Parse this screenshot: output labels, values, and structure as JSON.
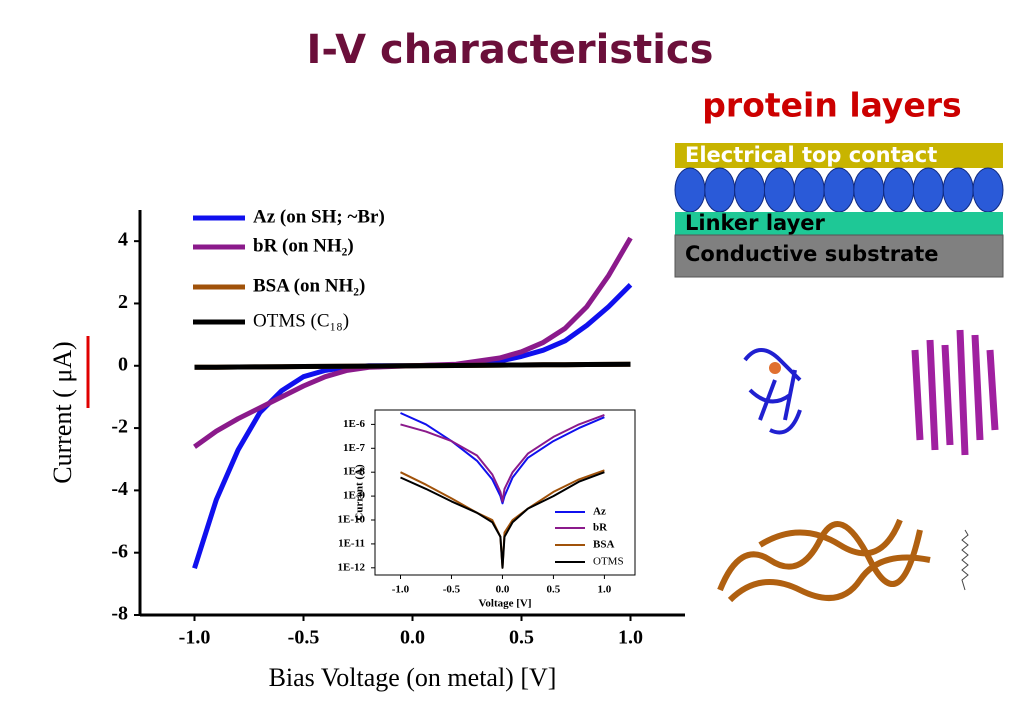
{
  "slide": {
    "title": "I-V characteristics",
    "subtitle": "protein layers",
    "layers": [
      "Electrical top contact",
      "Linker layer",
      "Conductive substrate"
    ]
  },
  "chart_data": [
    {
      "type": "line",
      "xlabel": "Bias Voltage (on metal) [V]",
      "ylabel": "Current ( μA)",
      "x": [
        -1,
        -0.9,
        -0.8,
        -0.7,
        -0.6,
        -0.5,
        -0.4,
        -0.3,
        -0.2,
        0,
        0.2,
        0.4,
        0.5,
        0.6,
        0.7,
        0.8,
        0.9,
        1
      ],
      "xlim": [
        -1.25,
        1.25
      ],
      "xticks": [
        {
          "value": -1,
          "label": "-1.0"
        },
        {
          "value": -0.5,
          "label": "-0.5"
        },
        {
          "value": 0,
          "label": "0.0"
        },
        {
          "value": 0.5,
          "label": "0.5"
        },
        {
          "value": 1,
          "label": "1.0"
        }
      ],
      "ylim": [
        -8,
        5
      ],
      "yticks": [
        -8,
        -6,
        -4,
        -2,
        0,
        2,
        4
      ],
      "grid": false,
      "log_y": false,
      "legend": "upper left",
      "series": [
        {
          "name": "Az (on SH; ~Br)",
          "color": "#1010ee",
          "values": [
            -6.5,
            -4.3,
            -2.7,
            -1.5,
            -0.8,
            -0.35,
            -0.15,
            -0.05,
            0,
            0,
            0.03,
            0.15,
            0.3,
            0.5,
            0.8,
            1.3,
            1.9,
            2.6
          ]
        },
        {
          "name": "bR (on NH₂)",
          "color": "#8b1a8b",
          "values": [
            -2.6,
            -2.1,
            -1.7,
            -1.35,
            -1.0,
            -0.65,
            -0.35,
            -0.15,
            -0.05,
            0,
            0.05,
            0.25,
            0.45,
            0.75,
            1.2,
            1.9,
            2.9,
            4.1
          ]
        },
        {
          "name": "BSA (on NH₂)",
          "color": "#a0520a",
          "values": [
            -0.05,
            -0.045,
            -0.04,
            -0.035,
            -0.03,
            -0.025,
            -0.02,
            -0.015,
            -0.01,
            0,
            0.01,
            0.02,
            0.025,
            0.03,
            0.035,
            0.04,
            0.045,
            0.05
          ]
        },
        {
          "name": "OTMS (C₁₈)",
          "color": "#000000",
          "values": [
            -0.05,
            -0.045,
            -0.04,
            -0.035,
            -0.03,
            -0.025,
            -0.02,
            -0.015,
            -0.01,
            0,
            0.01,
            0.02,
            0.025,
            0.03,
            0.035,
            0.04,
            0.045,
            0.05
          ]
        }
      ]
    },
    {
      "type": "line",
      "xlabel": "Voltage [V]",
      "ylabel": "Current (A)",
      "x": [
        -1,
        -0.75,
        -0.5,
        -0.25,
        -0.1,
        -0.02,
        0,
        0.02,
        0.1,
        0.25,
        0.5,
        0.75,
        1
      ],
      "xlim": [
        -1.25,
        1.3
      ],
      "xticks": [
        {
          "value": -1,
          "label": "-1.0"
        },
        {
          "value": -0.5,
          "label": "-0.5"
        },
        {
          "value": 0,
          "label": "0.0"
        },
        {
          "value": 0.5,
          "label": "0.5"
        },
        {
          "value": 1,
          "label": "1.0"
        }
      ],
      "ylim": [
        5e-13,
        4e-06
      ],
      "log_y": true,
      "grid": false,
      "legend": "lower right",
      "yticks": [
        {
          "value": 1e-12,
          "label": "1E-12"
        },
        {
          "value": 1e-11,
          "label": "1E-11"
        },
        {
          "value": 1e-10,
          "label": "1E-10"
        },
        {
          "value": 1e-09,
          "label": "1E-9"
        },
        {
          "value": 1e-08,
          "label": "1E-8"
        },
        {
          "value": 1e-07,
          "label": "1E-7"
        },
        {
          "value": 1e-06,
          "label": "1E-6"
        }
      ],
      "series": [
        {
          "name": "Az",
          "color": "#1010ee",
          "values": [
            3e-06,
            1e-06,
            2e-07,
            3e-08,
            5e-09,
            1e-09,
            5e-10,
            1e-09,
            6e-09,
            4e-08,
            2e-07,
            7e-07,
            2e-06
          ]
        },
        {
          "name": "bR",
          "color": "#8b1a8b",
          "values": [
            1e-06,
            5e-07,
            2e-07,
            5e-08,
            8e-09,
            1.5e-09,
            6e-10,
            2e-09,
            1e-08,
            6e-08,
            3e-07,
            1e-06,
            2.5e-06
          ]
        },
        {
          "name": "BSA",
          "color": "#a0520a",
          "values": [
            1e-08,
            3e-09,
            8e-10,
            2e-10,
            1e-10,
            2e-11,
            1e-12,
            3e-11,
            1e-10,
            3e-10,
            1.5e-09,
            5e-09,
            1.2e-08
          ]
        },
        {
          "name": "OTMS",
          "color": "#000000",
          "values": [
            6e-09,
            2e-09,
            6e-10,
            2e-10,
            8e-11,
            2e-11,
            1e-12,
            2e-11,
            8e-11,
            3e-10,
            1e-09,
            4e-09,
            1e-08
          ]
        }
      ]
    }
  ]
}
